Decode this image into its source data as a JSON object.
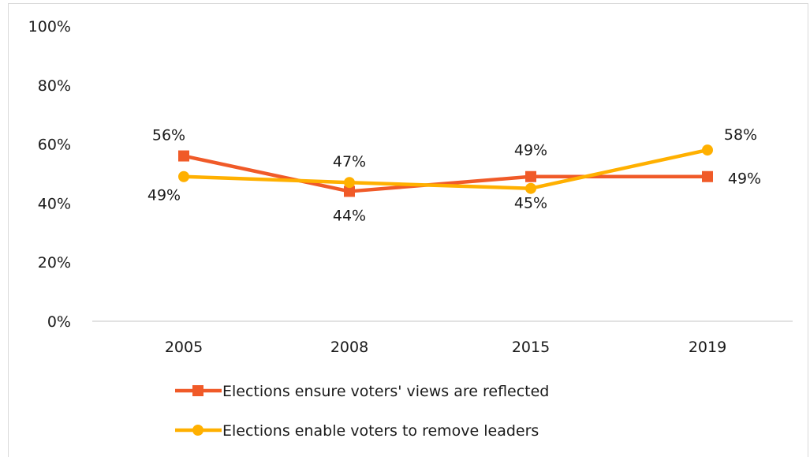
{
  "chart_data": {
    "type": "line",
    "categories": [
      "2005",
      "2008",
      "2015",
      "2019"
    ],
    "y_ticks": [
      "0%",
      "20%",
      "40%",
      "60%",
      "80%",
      "100%"
    ],
    "ylim": [
      0,
      100
    ],
    "legend_position": "bottom",
    "grid": false,
    "series": [
      {
        "name": "Elections ensure voters' views are reflected",
        "values": [
          56,
          44,
          49,
          49
        ],
        "labels": [
          "56%",
          "44%",
          "49%",
          "49%"
        ],
        "color": "#f05a28",
        "marker": "square"
      },
      {
        "name": "Elections enable voters to remove leaders",
        "values": [
          49,
          47,
          45,
          58
        ],
        "labels": [
          "49%",
          "47%",
          "45%",
          "58%"
        ],
        "color": "#ffb000",
        "marker": "circle"
      }
    ]
  }
}
